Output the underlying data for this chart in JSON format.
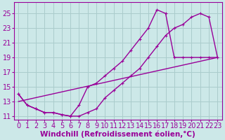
{
  "background_color": "#cce8e8",
  "grid_color": "#aacccc",
  "line_color": "#990099",
  "xlabel": "Windchill (Refroidissement éolien,°C)",
  "xlim": [
    -0.5,
    23.5
  ],
  "ylim": [
    10.5,
    26.5
  ],
  "yticks": [
    11,
    13,
    15,
    17,
    19,
    21,
    23,
    25
  ],
  "xticks": [
    0,
    1,
    2,
    3,
    4,
    5,
    6,
    7,
    8,
    9,
    10,
    11,
    12,
    13,
    14,
    15,
    16,
    17,
    18,
    19,
    20,
    21,
    22,
    23
  ],
  "line1_x": [
    0,
    1,
    2,
    3,
    4,
    5,
    6,
    7,
    8,
    9,
    10,
    11,
    12,
    13,
    14,
    15,
    16,
    17,
    18,
    19,
    20,
    21,
    22,
    23
  ],
  "line1_y": [
    14.0,
    12.5,
    12.0,
    11.5,
    11.5,
    11.2,
    11.0,
    11.0,
    11.5,
    12.0,
    13.5,
    14.5,
    15.5,
    16.5,
    17.5,
    19.0,
    20.5,
    22.0,
    23.0,
    23.5,
    24.5,
    25.0,
    24.5,
    19.0
  ],
  "line2_x": [
    0,
    1,
    2,
    3,
    4,
    5,
    6,
    7,
    8,
    9,
    10,
    11,
    12,
    13,
    14,
    15,
    16,
    17,
    18,
    19,
    20,
    21,
    22,
    23
  ],
  "line2_y": [
    14.0,
    12.5,
    12.0,
    11.5,
    11.5,
    11.2,
    11.0,
    12.5,
    15.0,
    15.5,
    16.5,
    17.5,
    18.5,
    20.0,
    21.5,
    23.0,
    25.5,
    25.0,
    19.0,
    19.0,
    19.0,
    19.0,
    19.0,
    19.0
  ],
  "line3_x": [
    0,
    23
  ],
  "line3_y": [
    13.0,
    19.0
  ],
  "xlabel_fontsize": 7.5,
  "tick_fontsize": 7,
  "line_width": 1.0,
  "marker_size": 2.5
}
